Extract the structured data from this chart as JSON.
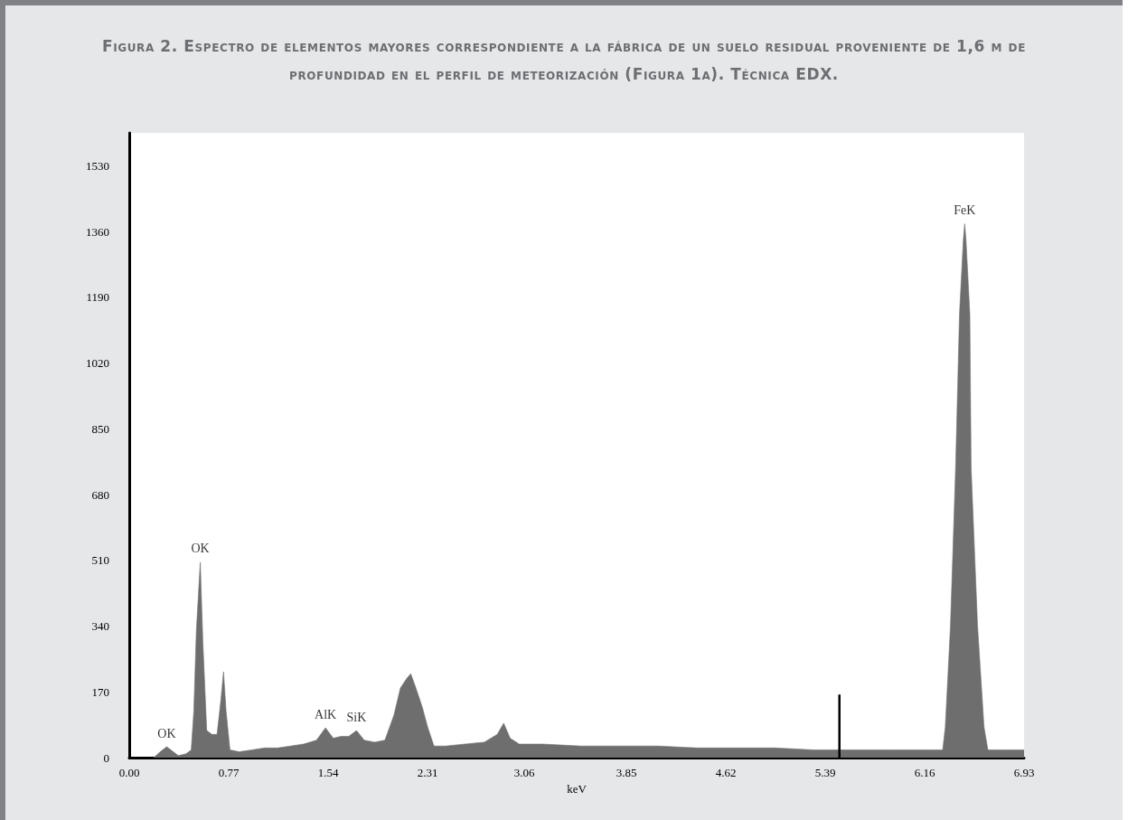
{
  "chart_data": {
    "type": "area",
    "title": "Figura 2. Espectro de elementos mayores correspondiente a la fábrica de un suelo residual proveniente de 1,6 m de profundidad en el perfil de meteorización (Figura 1a). Técnica EDX.",
    "xlabel": "keV",
    "xlim": [
      0,
      6.93
    ],
    "xticks": [
      {
        "value": 0,
        "label": "0.00"
      },
      0.77,
      1.54,
      2.31,
      3.06,
      3.85,
      4.62,
      5.39,
      6.16,
      6.93
    ],
    "ylim": [
      0,
      1615
    ],
    "yticks": [
      0,
      170,
      340,
      510,
      680,
      850,
      1020,
      1190,
      1360,
      1530
    ],
    "grid": false,
    "series": [
      {
        "color": "#6e6e6e",
        "x": [
          0.19,
          0.24,
          0.29,
          0.33,
          0.38,
          0.44,
          0.48,
          0.5,
          0.52,
          0.55,
          0.57,
          0.6,
          0.64,
          0.68,
          0.71,
          0.73,
          0.75,
          0.78,
          0.85,
          0.95,
          1.05,
          1.15,
          1.25,
          1.35,
          1.45,
          1.52,
          1.58,
          1.64,
          1.7,
          1.76,
          1.82,
          1.9,
          1.98,
          2.05,
          2.1,
          2.15,
          2.18,
          2.22,
          2.27,
          2.31,
          2.36,
          2.45,
          2.6,
          2.75,
          2.85,
          2.9,
          2.95,
          3.02,
          3.2,
          3.5,
          3.8,
          4.1,
          4.4,
          4.7,
          5.0,
          5.3,
          5.6,
          5.9,
          6.2,
          6.3,
          6.32,
          6.36,
          6.4,
          6.43,
          6.46,
          6.47,
          6.48,
          6.51,
          6.52,
          6.57,
          6.62,
          6.65,
          6.75,
          6.93
        ],
        "values": [
          0,
          15,
          28,
          18,
          5,
          10,
          20,
          120,
          330,
          505,
          300,
          70,
          60,
          60,
          150,
          222,
          120,
          20,
          15,
          20,
          25,
          25,
          30,
          35,
          45,
          77,
          50,
          55,
          55,
          70,
          45,
          40,
          45,
          110,
          180,
          205,
          217,
          180,
          130,
          80,
          30,
          30,
          35,
          40,
          60,
          89,
          50,
          35,
          35,
          30,
          30,
          30,
          25,
          25,
          25,
          20,
          20,
          20,
          20,
          20,
          79,
          340,
          749,
          1147,
          1340,
          1380,
          1340,
          1147,
          749,
          340,
          79,
          20,
          20,
          20
        ]
      },
      {
        "type": "line",
        "color": "#000000",
        "x": [
          5.5,
          5.5
        ],
        "values": [
          0,
          163
        ]
      }
    ],
    "annotations": [
      {
        "text": "OK",
        "x": 0.29,
        "y": 28
      },
      {
        "text": "OK",
        "x": 0.55,
        "y": 505
      },
      {
        "text": "AlK",
        "x": 1.52,
        "y": 77
      },
      {
        "text": "SiK",
        "x": 1.76,
        "y": 70
      },
      {
        "text": "FeK",
        "x": 6.47,
        "y": 1380
      }
    ]
  }
}
